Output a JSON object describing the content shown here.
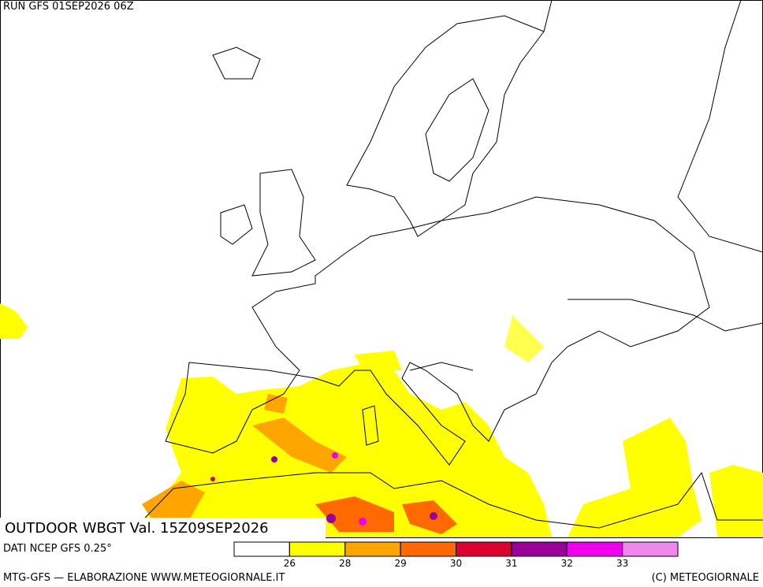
{
  "header": {
    "run": "RUN GFS 01SEP2026 06Z"
  },
  "map": {
    "title": "OUTDOOR WBGT Val. 15Z09SEP2026"
  },
  "footer": {
    "source": "DATI NCEP GFS 0.25°",
    "credit": "MTG-GFS — ELABORAZIONE WWW.METEOGIORNALE.IT",
    "copyright": "(C) METEOGIORNALE"
  },
  "legend": {
    "colors": [
      "#ffffff",
      "#ffff00",
      "#ffa500",
      "#ff6a00",
      "#dc0030",
      "#990099",
      "#ee00ee",
      "#ee88ee"
    ],
    "ticks": [
      26,
      28,
      29,
      30,
      31,
      32,
      33
    ]
  }
}
